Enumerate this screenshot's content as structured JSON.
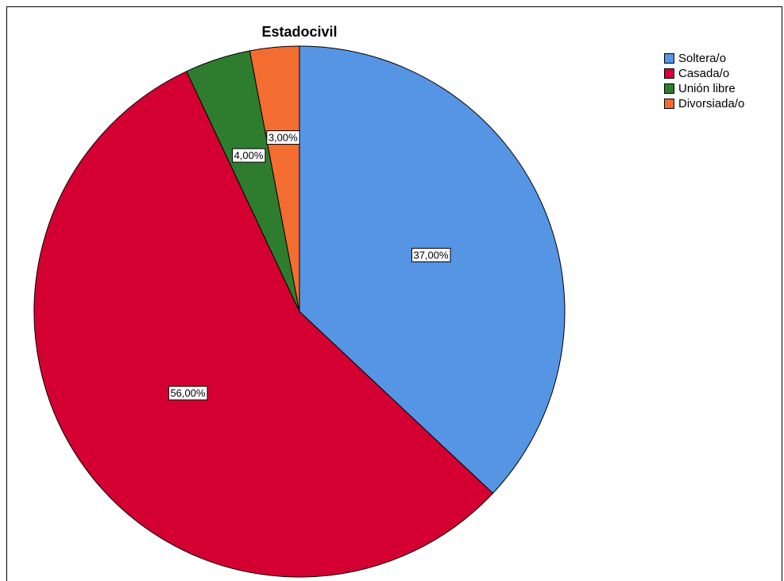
{
  "chart_data": {
    "type": "pie",
    "title": "Estadocivil",
    "legend_position": "top-right",
    "slices": [
      {
        "label": "Soltera/o",
        "value": 37,
        "display": "37,00%",
        "color": "#5595e3"
      },
      {
        "label": "Casada/o",
        "value": 56,
        "display": "56,00%",
        "color": "#d40031"
      },
      {
        "label": "Unión libre",
        "value": 4,
        "display": "4,00%",
        "color": "#2e7d2e"
      },
      {
        "label": "Divorsiada/o",
        "value": 3,
        "display": "3,00%",
        "color": "#f36d31"
      }
    ]
  }
}
